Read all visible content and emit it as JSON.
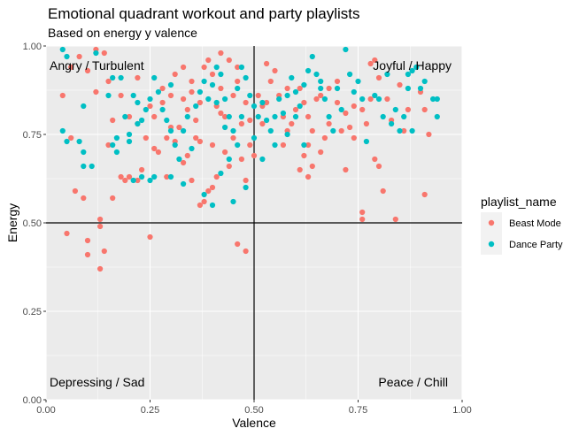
{
  "chart_data": {
    "type": "scatter",
    "title": "Emotional quadrant workout and party playlists",
    "subtitle": "Based on energy y valence",
    "xlabel": "Valence",
    "ylabel": "Energy",
    "xlim": [
      0,
      1
    ],
    "ylim": [
      0,
      1
    ],
    "xticks": [
      "0.00",
      "0.25",
      "0.50",
      "0.75",
      "1.00"
    ],
    "yticks": [
      "0.00",
      "0.25",
      "0.50",
      "0.75",
      "1.00"
    ],
    "grid": true,
    "reference_lines": {
      "x": 0.5,
      "y": 0.5
    },
    "quadrant_labels": {
      "top_left": "Angry / Turbulent",
      "top_right": "Joyful / Happy",
      "bottom_left": "Depressing / Sad",
      "bottom_right": "Peace / Chill"
    },
    "legend": {
      "title": "playlist_name",
      "position": "right"
    },
    "series": [
      {
        "name": "Beast Mode",
        "color": "#F8766D",
        "points": [
          [
            0.04,
            0.86
          ],
          [
            0.06,
            0.74
          ],
          [
            0.07,
            0.59
          ],
          [
            0.09,
            0.57
          ],
          [
            0.05,
            0.47
          ],
          [
            0.1,
            0.45
          ],
          [
            0.1,
            0.41
          ],
          [
            0.13,
            0.51
          ],
          [
            0.13,
            0.49
          ],
          [
            0.14,
            0.42
          ],
          [
            0.13,
            0.37
          ],
          [
            0.16,
            0.57
          ],
          [
            0.18,
            0.63
          ],
          [
            0.19,
            0.62
          ],
          [
            0.2,
            0.63
          ],
          [
            0.22,
            0.62
          ],
          [
            0.25,
            0.46
          ],
          [
            0.12,
            0.99
          ],
          [
            0.14,
            0.98
          ],
          [
            0.08,
            0.97
          ],
          [
            0.06,
            0.94
          ],
          [
            0.1,
            0.93
          ],
          [
            0.15,
            0.9
          ],
          [
            0.18,
            0.86
          ],
          [
            0.2,
            0.8
          ],
          [
            0.22,
            0.78
          ],
          [
            0.24,
            0.74
          ],
          [
            0.26,
            0.8
          ],
          [
            0.28,
            0.84
          ],
          [
            0.28,
            0.88
          ],
          [
            0.3,
            0.86
          ],
          [
            0.31,
            0.92
          ],
          [
            0.33,
            0.94
          ],
          [
            0.35,
            0.87
          ],
          [
            0.33,
            0.85
          ],
          [
            0.34,
            0.82
          ],
          [
            0.36,
            0.79
          ],
          [
            0.37,
            0.84
          ],
          [
            0.38,
            0.94
          ],
          [
            0.39,
            0.96
          ],
          [
            0.4,
            0.92
          ],
          [
            0.42,
            0.88
          ],
          [
            0.41,
            0.83
          ],
          [
            0.43,
            0.8
          ],
          [
            0.45,
            0.86
          ],
          [
            0.46,
            0.9
          ],
          [
            0.48,
            0.84
          ],
          [
            0.47,
            0.78
          ],
          [
            0.43,
            0.7
          ],
          [
            0.44,
            0.66
          ],
          [
            0.41,
            0.63
          ],
          [
            0.39,
            0.59
          ],
          [
            0.38,
            0.56
          ],
          [
            0.35,
            0.62
          ],
          [
            0.33,
            0.67
          ],
          [
            0.31,
            0.73
          ],
          [
            0.3,
            0.77
          ],
          [
            0.27,
            0.7
          ],
          [
            0.29,
            0.63
          ],
          [
            0.34,
            0.69
          ],
          [
            0.36,
            0.74
          ],
          [
            0.4,
            0.72
          ],
          [
            0.45,
            0.74
          ],
          [
            0.47,
            0.68
          ],
          [
            0.48,
            0.62
          ],
          [
            0.49,
            0.72
          ],
          [
            0.5,
            0.69
          ],
          [
            0.52,
            0.78
          ],
          [
            0.53,
            0.84
          ],
          [
            0.54,
            0.9
          ],
          [
            0.56,
            0.86
          ],
          [
            0.57,
            0.8
          ],
          [
            0.58,
            0.76
          ],
          [
            0.6,
            0.82
          ],
          [
            0.61,
            0.88
          ],
          [
            0.62,
            0.84
          ],
          [
            0.63,
            0.8
          ],
          [
            0.64,
            0.76
          ],
          [
            0.63,
            0.72
          ],
          [
            0.62,
            0.69
          ],
          [
            0.64,
            0.66
          ],
          [
            0.66,
            0.7
          ],
          [
            0.67,
            0.74
          ],
          [
            0.68,
            0.78
          ],
          [
            0.7,
            0.84
          ],
          [
            0.72,
            0.81
          ],
          [
            0.73,
            0.77
          ],
          [
            0.74,
            0.83
          ],
          [
            0.76,
            0.82
          ],
          [
            0.77,
            0.78
          ],
          [
            0.78,
            0.95
          ],
          [
            0.79,
            0.96
          ],
          [
            0.8,
            0.91
          ],
          [
            0.82,
            0.85
          ],
          [
            0.85,
            0.89
          ],
          [
            0.87,
            0.82
          ],
          [
            0.9,
            0.87
          ],
          [
            0.91,
            0.82
          ],
          [
            0.92,
            0.75
          ],
          [
            0.86,
            0.76
          ],
          [
            0.79,
            0.68
          ],
          [
            0.8,
            0.66
          ],
          [
            0.81,
            0.59
          ],
          [
            0.84,
            0.51
          ],
          [
            0.76,
            0.53
          ],
          [
            0.76,
            0.51
          ],
          [
            0.91,
            0.58
          ],
          [
            0.46,
            0.44
          ],
          [
            0.48,
            0.42
          ],
          [
            0.42,
            0.81
          ],
          [
            0.37,
            0.73
          ],
          [
            0.55,
            0.93
          ],
          [
            0.58,
            0.88
          ],
          [
            0.25,
            0.83
          ],
          [
            0.22,
            0.91
          ],
          [
            0.16,
            0.79
          ],
          [
            0.15,
            0.72
          ],
          [
            0.12,
            0.87
          ],
          [
            0.7,
            0.9
          ],
          [
            0.68,
            0.88
          ],
          [
            0.66,
            0.86
          ],
          [
            0.74,
            0.74
          ],
          [
            0.44,
            0.96
          ],
          [
            0.52,
            0.83
          ],
          [
            0.51,
            0.86
          ],
          [
            0.4,
            0.6
          ],
          [
            0.37,
            0.55
          ],
          [
            0.32,
            0.77
          ],
          [
            0.49,
            0.79
          ],
          [
            0.53,
            0.95
          ],
          [
            0.59,
            0.78
          ],
          [
            0.65,
            0.85
          ],
          [
            0.71,
            0.76
          ],
          [
            0.26,
            0.71
          ],
          [
            0.23,
            0.65
          ],
          [
            0.35,
            0.9
          ],
          [
            0.42,
            0.98
          ],
          [
            0.46,
            0.94
          ],
          [
            0.29,
            0.74
          ],
          [
            0.57,
            0.72
          ],
          [
            0.61,
            0.65
          ],
          [
            0.63,
            0.63
          ],
          [
            0.72,
            0.65
          ],
          [
            0.78,
            0.85
          ],
          [
            0.83,
            0.79
          ]
        ]
      },
      {
        "name": "Dance Party",
        "color": "#00BFC4",
        "points": [
          [
            0.04,
            0.99
          ],
          [
            0.05,
            0.97
          ],
          [
            0.04,
            0.76
          ],
          [
            0.05,
            0.73
          ],
          [
            0.08,
            0.73
          ],
          [
            0.09,
            0.7
          ],
          [
            0.09,
            0.83
          ],
          [
            0.09,
            0.66
          ],
          [
            0.11,
            0.66
          ],
          [
            0.12,
            0.98
          ],
          [
            0.15,
            0.86
          ],
          [
            0.16,
            0.72
          ],
          [
            0.17,
            0.74
          ],
          [
            0.17,
            0.7
          ],
          [
            0.18,
            0.91
          ],
          [
            0.19,
            0.8
          ],
          [
            0.2,
            0.75
          ],
          [
            0.2,
            0.73
          ],
          [
            0.21,
            0.86
          ],
          [
            0.22,
            0.84
          ],
          [
            0.23,
            0.79
          ],
          [
            0.24,
            0.82
          ],
          [
            0.25,
            0.85
          ],
          [
            0.26,
            0.91
          ],
          [
            0.27,
            0.87
          ],
          [
            0.28,
            0.82
          ],
          [
            0.29,
            0.79
          ],
          [
            0.3,
            0.76
          ],
          [
            0.31,
            0.72
          ],
          [
            0.32,
            0.68
          ],
          [
            0.33,
            0.76
          ],
          [
            0.34,
            0.8
          ],
          [
            0.35,
            0.71
          ],
          [
            0.37,
            0.87
          ],
          [
            0.38,
            0.9
          ],
          [
            0.39,
            0.85
          ],
          [
            0.4,
            0.89
          ],
          [
            0.41,
            0.84
          ],
          [
            0.42,
            0.92
          ],
          [
            0.43,
            0.85
          ],
          [
            0.44,
            0.8
          ],
          [
            0.45,
            0.76
          ],
          [
            0.46,
            0.72
          ],
          [
            0.47,
            0.94
          ],
          [
            0.48,
            0.91
          ],
          [
            0.49,
            0.86
          ],
          [
            0.5,
            0.83
          ],
          [
            0.51,
            0.8
          ],
          [
            0.52,
            0.84
          ],
          [
            0.53,
            0.79
          ],
          [
            0.54,
            0.76
          ],
          [
            0.55,
            0.8
          ],
          [
            0.56,
            0.85
          ],
          [
            0.57,
            0.81
          ],
          [
            0.58,
            0.86
          ],
          [
            0.59,
            0.91
          ],
          [
            0.6,
            0.87
          ],
          [
            0.61,
            0.83
          ],
          [
            0.62,
            0.89
          ],
          [
            0.63,
            0.93
          ],
          [
            0.64,
            0.97
          ],
          [
            0.65,
            0.92
          ],
          [
            0.66,
            0.88
          ],
          [
            0.67,
            0.85
          ],
          [
            0.68,
            0.8
          ],
          [
            0.69,
            0.76
          ],
          [
            0.7,
            0.88
          ],
          [
            0.71,
            0.82
          ],
          [
            0.72,
            0.99
          ],
          [
            0.73,
            0.92
          ],
          [
            0.74,
            0.87
          ],
          [
            0.75,
            0.9
          ],
          [
            0.76,
            0.85
          ],
          [
            0.77,
            0.73
          ],
          [
            0.38,
            0.58
          ],
          [
            0.4,
            0.55
          ],
          [
            0.33,
            0.61
          ],
          [
            0.3,
            0.63
          ],
          [
            0.25,
            0.62
          ],
          [
            0.23,
            0.63
          ],
          [
            0.21,
            0.62
          ],
          [
            0.26,
            0.63
          ],
          [
            0.42,
            0.64
          ],
          [
            0.44,
            0.68
          ],
          [
            0.48,
            0.6
          ],
          [
            0.52,
            0.68
          ],
          [
            0.55,
            0.72
          ],
          [
            0.58,
            0.75
          ],
          [
            0.62,
            0.72
          ],
          [
            0.5,
            0.74
          ],
          [
            0.45,
            0.56
          ],
          [
            0.8,
            0.85
          ],
          [
            0.81,
            0.8
          ],
          [
            0.83,
            0.78
          ],
          [
            0.84,
            0.82
          ],
          [
            0.85,
            0.76
          ],
          [
            0.86,
            0.8
          ],
          [
            0.87,
            0.92
          ],
          [
            0.88,
            0.93
          ],
          [
            0.89,
            0.94
          ],
          [
            0.9,
            0.88
          ],
          [
            0.94,
            0.85
          ],
          [
            0.94,
            0.8
          ],
          [
            0.88,
            0.76
          ],
          [
            0.79,
            0.86
          ],
          [
            0.82,
            0.92
          ],
          [
            0.87,
            0.88
          ],
          [
            0.91,
            0.9
          ],
          [
            0.93,
            0.85
          ],
          [
            0.36,
            0.83
          ],
          [
            0.41,
            0.94
          ],
          [
            0.46,
            0.88
          ],
          [
            0.3,
            0.89
          ],
          [
            0.22,
            0.78
          ],
          [
            0.16,
            0.91
          ],
          [
            0.6,
            0.8
          ],
          [
            0.66,
            0.9
          ],
          [
            0.43,
            0.77
          ],
          [
            0.47,
            0.8
          ]
        ]
      }
    ]
  }
}
